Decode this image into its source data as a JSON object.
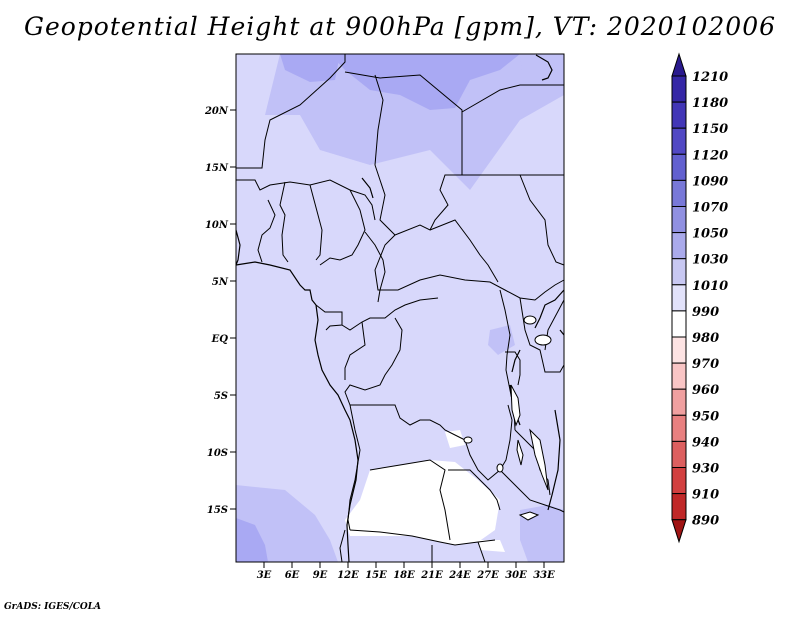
{
  "title": "Geopotential Height at 900hPa [gpm], VT: 2020102006",
  "credit": "GrADS: IGES/COLA",
  "map": {
    "lat_labels": [
      "20N",
      "15N",
      "10N",
      "5N",
      "EQ",
      "5S",
      "10S",
      "15S"
    ],
    "lon_labels": [
      "3E",
      "6E",
      "9E",
      "12E",
      "15E",
      "18E",
      "21E",
      "24E",
      "27E",
      "30E",
      "33E"
    ]
  },
  "colorbar": {
    "labels": [
      "1210",
      "1180",
      "1150",
      "1120",
      "1090",
      "1070",
      "1050",
      "1030",
      "1010",
      "990",
      "980",
      "970",
      "960",
      "950",
      "940",
      "930",
      "910",
      "890"
    ],
    "colors": [
      "#2a1a8e",
      "#3527a6",
      "#4236b7",
      "#5148c4",
      "#6260cf",
      "#7878d8",
      "#9090e1",
      "#aaaaeb",
      "#c8c8f2",
      "#e2e2fa",
      "#ffffff",
      "#fde3e3",
      "#f9c5c5",
      "#f0a0a0",
      "#e88080",
      "#dc5f5f",
      "#d24040",
      "#c02828",
      "#a01414"
    ]
  },
  "palette": {
    "light": "#d8d8fb",
    "mid": "#c1c1f7",
    "dark": "#a9a9f3",
    "darker": "#9090ee",
    "white": "#ffffff"
  }
}
